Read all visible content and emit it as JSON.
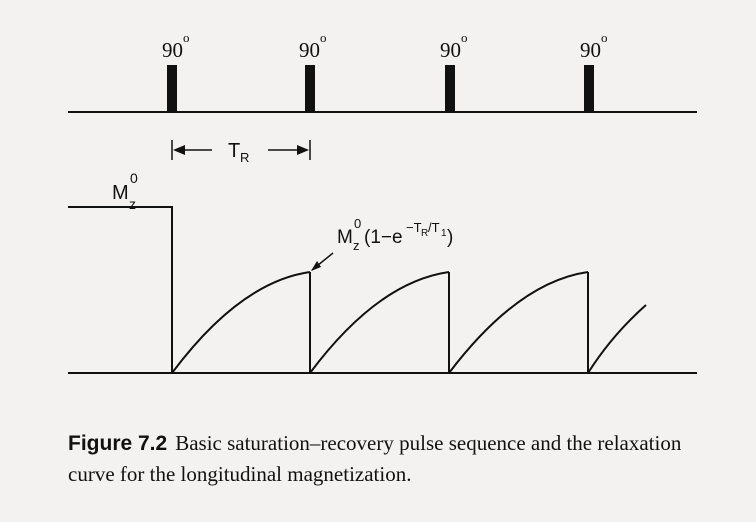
{
  "pulse_sequence": {
    "pulse_label": "90°",
    "pulse_label_base": "90",
    "pulse_label_sup": "o",
    "pulse_count": 4,
    "interval_label_main": "T",
    "interval_label_sub": "R"
  },
  "relaxation": {
    "initial_label_main": "M",
    "initial_label_sub": "z",
    "initial_label_sup": "0",
    "recovery_label": "M_z^0(1−e^(−T_R/T_1))",
    "recovery_label_parts": {
      "M": "M",
      "sub_z": "z",
      "sup_0": "0",
      "paren_open": "(1−e",
      "exp_minus_T": "−T",
      "exp_sub_R": "R",
      "exp_slash_T": "/T",
      "exp_sub_1": "1",
      "paren_close": ")"
    }
  },
  "caption": {
    "figure_label": "Figure 7.2",
    "text": "Basic saturation–recovery pulse sequence and the relaxation curve for the longitudinal magnetization."
  },
  "colors": {
    "background": "#f3f2f0",
    "ink": "#111111"
  }
}
